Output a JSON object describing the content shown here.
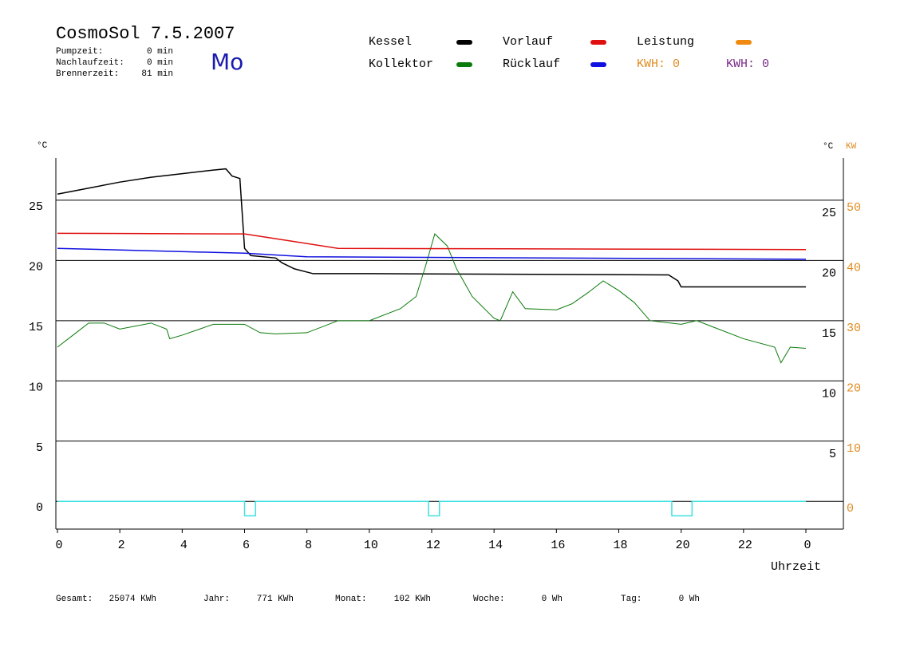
{
  "header": {
    "title": "CosmoSol 7.5.2007",
    "day": "Mo",
    "info": [
      [
        "Pumpzeit:",
        "0 min"
      ],
      [
        "Nachlaufzeit:",
        "0 min"
      ],
      [
        "Brennerzeit:",
        "81 min"
      ]
    ]
  },
  "kwh_labels": [
    {
      "text": "KWH: 0",
      "color": "#e08a1e"
    },
    {
      "text": "KWH: 0",
      "color": "#7a2a8a"
    }
  ],
  "footer": [
    [
      "Gesamt:",
      "25074 KWh"
    ],
    [
      "Jahr:",
      "771 KWh"
    ],
    [
      "Monat:",
      "102 KWh"
    ],
    [
      "Woche:",
      "0 Wh"
    ],
    [
      "Tag:",
      "0 Wh"
    ]
  ],
  "chart_data": {
    "type": "line",
    "y_label": "°C",
    "y2_label_unit": "°C",
    "y2_label": "KW",
    "x_label": "Uhrzeit",
    "xlim": [
      0,
      24
    ],
    "xticks": [
      0,
      2,
      4,
      6,
      8,
      10,
      12,
      14,
      16,
      18,
      20,
      22,
      {
        "value": 24,
        "label": "0"
      }
    ],
    "ylim": [
      -2.3,
      28.5
    ],
    "yticks": [
      0,
      5,
      10,
      15,
      20,
      25
    ],
    "y_right_ticks": [
      5,
      10,
      15,
      20,
      25
    ],
    "y2lim": [
      -4.6,
      57
    ],
    "y2ticks": [
      0,
      10,
      20,
      30,
      40,
      50
    ],
    "grid": true,
    "series": [
      {
        "name": "Kessel",
        "color": "#000000",
        "x": [
          0,
          1,
          2,
          3,
          4,
          5,
          5.4,
          5.6,
          5.85,
          6.0,
          6.2,
          7,
          7.2,
          7.6,
          8.2,
          10,
          19.6,
          19.9,
          20,
          24
        ],
        "values": [
          25.5,
          26.0,
          26.5,
          26.9,
          27.2,
          27.5,
          27.6,
          27.0,
          26.8,
          21.0,
          20.4,
          20.2,
          19.8,
          19.3,
          18.9,
          18.9,
          18.8,
          18.3,
          17.8,
          17.8
        ]
      },
      {
        "name": "Kollektor",
        "color": "#0a7a0a",
        "x": [
          0,
          0.5,
          1,
          1.5,
          2,
          3,
          3.5,
          3.6,
          4,
          5,
          6,
          6.5,
          7,
          8,
          9,
          10,
          11,
          11.5,
          11.8,
          12.1,
          12.5,
          12.8,
          13.3,
          14,
          14.2,
          14.6,
          15,
          16,
          16.5,
          17,
          17.5,
          18,
          18.5,
          19,
          20,
          20.5,
          21,
          22,
          23,
          23.2,
          23.5,
          24
        ],
        "values": [
          12.8,
          13.8,
          14.8,
          14.8,
          14.3,
          14.8,
          14.3,
          13.5,
          13.8,
          14.7,
          14.7,
          14.0,
          13.9,
          14.0,
          15.0,
          15.0,
          16.0,
          17.0,
          19.5,
          22.2,
          21.2,
          19.3,
          17.0,
          15.2,
          15.0,
          17.4,
          16.0,
          15.9,
          16.4,
          17.3,
          18.3,
          17.5,
          16.5,
          15.0,
          14.7,
          15.0,
          14.5,
          13.5,
          12.8,
          11.5,
          12.8,
          12.7
        ]
      },
      {
        "name": "Vorlauf",
        "color": "#e01010",
        "x": [
          0,
          6,
          7.5,
          9,
          24
        ],
        "values": [
          22.25,
          22.2,
          21.6,
          21.0,
          20.9
        ]
      },
      {
        "name": "Rücklauf",
        "color": "#1010e0",
        "x": [
          0,
          6,
          8,
          24
        ],
        "values": [
          21.0,
          20.6,
          20.3,
          20.1
        ]
      },
      {
        "name": "Leistung",
        "color": "#f08a10"
      },
      {
        "color": "#40e0e0",
        "x": [
          0,
          6.0,
          6.0,
          6.35,
          6.35,
          11.9,
          11.9,
          12.25,
          12.25,
          19.7,
          19.7,
          20.35,
          20.35,
          24
        ],
        "values": [
          0,
          0,
          -1.2,
          -1.2,
          0,
          0,
          -1.2,
          -1.2,
          0,
          0,
          -1.2,
          -1.2,
          0,
          0
        ]
      }
    ]
  }
}
